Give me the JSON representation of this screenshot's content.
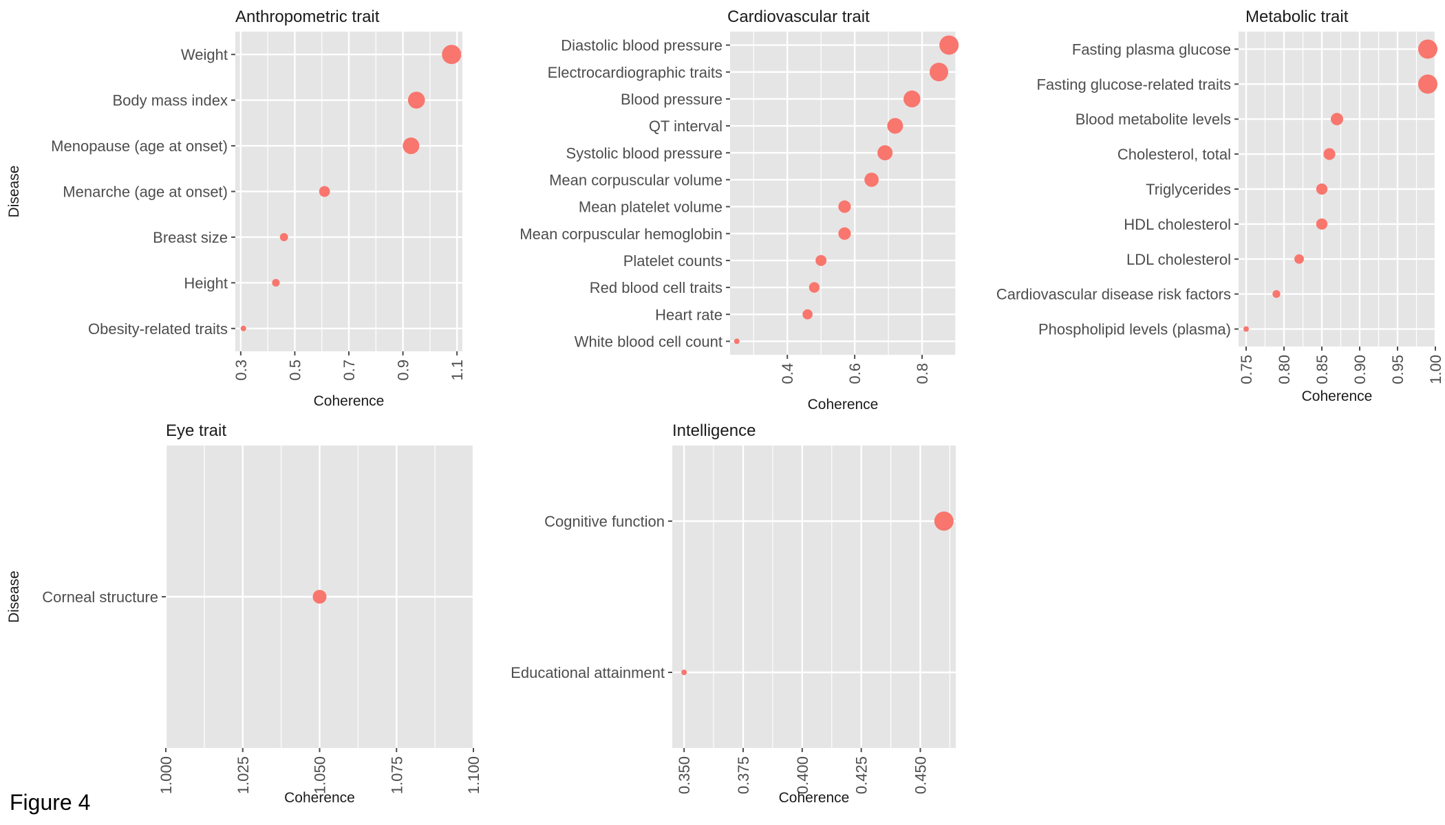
{
  "figure_label": "Figure 4",
  "style": {
    "panel_bg": "#e5e5e5",
    "grid_color": "#ffffff",
    "point_color": "#f8766d",
    "text_color": "#1a1a1a",
    "tick_color": "#4d4d4d"
  },
  "chart_data": [
    {
      "type": "scatter",
      "title": "Anthropometric trait",
      "xlabel": "Coherence",
      "ylabel": "Disease",
      "xlim": [
        0.28,
        1.12
      ],
      "x_ticks": [
        "0.3",
        "0.5",
        "0.7",
        "0.9",
        "1.1"
      ],
      "grid": true,
      "categories": [
        "Weight",
        "Body mass index",
        "Menopause (age at onset)",
        "Menarche (age at onset)",
        "Breast size",
        "Height",
        "Obesity-related traits"
      ],
      "values": [
        1.08,
        0.95,
        0.93,
        0.61,
        0.46,
        0.43,
        0.31
      ]
    },
    {
      "type": "scatter",
      "title": "Cardiovascular trait",
      "xlabel": "Coherence",
      "ylabel": "",
      "xlim": [
        0.23,
        0.9
      ],
      "x_ticks": [
        "0.4",
        "0.6",
        "0.8"
      ],
      "grid": true,
      "categories": [
        "Diastolic blood pressure",
        "Electrocardiographic traits",
        "Blood pressure",
        "QT interval",
        "Systolic blood pressure",
        "Mean corpuscular volume",
        "Mean platelet volume",
        "Mean corpuscular hemoglobin",
        "Platelet counts",
        "Red blood cell traits",
        "Heart rate",
        "White blood cell count"
      ],
      "values": [
        0.88,
        0.85,
        0.77,
        0.72,
        0.69,
        0.65,
        0.57,
        0.57,
        0.5,
        0.48,
        0.46,
        0.25
      ]
    },
    {
      "type": "scatter",
      "title": "Metabolic trait",
      "xlabel": "Coherence",
      "ylabel": "",
      "xlim": [
        0.74,
        1.0
      ],
      "x_ticks": [
        "0.75",
        "0.80",
        "0.85",
        "0.90",
        "0.95",
        "1.00"
      ],
      "grid": true,
      "categories": [
        "Fasting plasma glucose",
        "Fasting glucose-related traits",
        "Blood metabolite levels",
        "Cholesterol, total",
        "Triglycerides",
        "HDL cholesterol",
        "LDL cholesterol",
        "Cardiovascular disease risk factors",
        "Phospholipid levels (plasma)"
      ],
      "values": [
        0.99,
        0.99,
        0.87,
        0.86,
        0.85,
        0.85,
        0.82,
        0.79,
        0.75
      ]
    },
    {
      "type": "scatter",
      "title": "Eye trait",
      "xlabel": "Coherence",
      "ylabel": "Disease",
      "xlim": [
        1.0,
        1.1
      ],
      "x_ticks": [
        "1.000",
        "1.025",
        "1.050",
        "1.075",
        "1.100"
      ],
      "grid": true,
      "categories": [
        "Corneal structure"
      ],
      "values": [
        1.05
      ]
    },
    {
      "type": "scatter",
      "title": "Intelligence",
      "xlabel": "Coherence",
      "ylabel": "",
      "xlim": [
        0.345,
        0.465
      ],
      "x_ticks": [
        "0.350",
        "0.375",
        "0.400",
        "0.425",
        "0.450"
      ],
      "grid": true,
      "categories": [
        "Cognitive function",
        "Educational attainment"
      ],
      "values": [
        0.46,
        0.35
      ]
    }
  ]
}
